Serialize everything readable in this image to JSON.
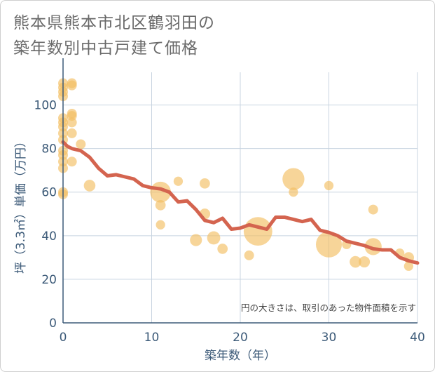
{
  "title_lines": [
    "熊本県熊本市北区鶴羽田の",
    "築年数別中古戸建て価格"
  ],
  "chart_data": {
    "type": "scatter+line",
    "xlabel": "築年数（年）",
    "ylabel": "坪（3.3㎡）単価（万円）",
    "xlim": [
      0,
      40
    ],
    "ylim": [
      0,
      115
    ],
    "xticks": [
      0,
      10,
      20,
      30,
      40
    ],
    "yticks": [
      0,
      20,
      40,
      60,
      80,
      100
    ],
    "note": "円の大きさは、取引のあった物件面積を示す",
    "colors": {
      "bubble": "#f3bf62",
      "bubble_opacity": 0.65,
      "line": "#d4644f",
      "grid": "#c8d4e0",
      "axis": "#3c5a78"
    },
    "scatter": [
      {
        "x": 0,
        "y": 110,
        "s": 1
      },
      {
        "x": 0,
        "y": 108,
        "s": 1
      },
      {
        "x": 0,
        "y": 106,
        "s": 1
      },
      {
        "x": 0,
        "y": 104,
        "s": 1
      },
      {
        "x": 0,
        "y": 94,
        "s": 1
      },
      {
        "x": 0,
        "y": 92,
        "s": 1
      },
      {
        "x": 0,
        "y": 90,
        "s": 1
      },
      {
        "x": 0,
        "y": 87,
        "s": 1
      },
      {
        "x": 0,
        "y": 84,
        "s": 1
      },
      {
        "x": 0,
        "y": 79,
        "s": 1
      },
      {
        "x": 0,
        "y": 77,
        "s": 1
      },
      {
        "x": 0,
        "y": 74,
        "s": 1
      },
      {
        "x": 0,
        "y": 71,
        "s": 1
      },
      {
        "x": 0,
        "y": 60,
        "s": 1
      },
      {
        "x": 0,
        "y": 59,
        "s": 1
      },
      {
        "x": 1,
        "y": 110,
        "s": 1
      },
      {
        "x": 1,
        "y": 109,
        "s": 1
      },
      {
        "x": 1,
        "y": 96,
        "s": 1
      },
      {
        "x": 1,
        "y": 95,
        "s": 1
      },
      {
        "x": 1,
        "y": 92,
        "s": 1
      },
      {
        "x": 1,
        "y": 87,
        "s": 1
      },
      {
        "x": 1,
        "y": 74,
        "s": 1
      },
      {
        "x": 2,
        "y": 82,
        "s": 1
      },
      {
        "x": 3,
        "y": 63,
        "s": 1.4
      },
      {
        "x": 11,
        "y": 60,
        "s": 4.5
      },
      {
        "x": 11,
        "y": 54,
        "s": 1.1
      },
      {
        "x": 11,
        "y": 45,
        "s": 0.9
      },
      {
        "x": 13,
        "y": 65,
        "s": 0.9
      },
      {
        "x": 16,
        "y": 64,
        "s": 1.1
      },
      {
        "x": 16,
        "y": 50,
        "s": 1.2
      },
      {
        "x": 15,
        "y": 38,
        "s": 1.5
      },
      {
        "x": 17,
        "y": 39,
        "s": 1.8
      },
      {
        "x": 18,
        "y": 34,
        "s": 1.1
      },
      {
        "x": 21,
        "y": 31,
        "s": 1.0
      },
      {
        "x": 22,
        "y": 42,
        "s": 8.5
      },
      {
        "x": 26,
        "y": 66,
        "s": 5.0
      },
      {
        "x": 26,
        "y": 60,
        "s": 0.9
      },
      {
        "x": 30,
        "y": 63,
        "s": 0.9
      },
      {
        "x": 30,
        "y": 36,
        "s": 7.0
      },
      {
        "x": 32,
        "y": 36,
        "s": 0.9
      },
      {
        "x": 33,
        "y": 28,
        "s": 1.4
      },
      {
        "x": 34,
        "y": 28,
        "s": 1.3
      },
      {
        "x": 35,
        "y": 52,
        "s": 1.0
      },
      {
        "x": 35,
        "y": 35,
        "s": 3.0
      },
      {
        "x": 38,
        "y": 32,
        "s": 0.9
      },
      {
        "x": 39,
        "y": 30,
        "s": 1.2
      },
      {
        "x": 39,
        "y": 26,
        "s": 0.9
      }
    ],
    "line": {
      "x": [
        0,
        0.5,
        1,
        2,
        3,
        4,
        5,
        6,
        7,
        8,
        9,
        10,
        11,
        12,
        13,
        14,
        15,
        16,
        17,
        18,
        19,
        20,
        21,
        22,
        23,
        24,
        25,
        26,
        27,
        28,
        29,
        30,
        31,
        32,
        33,
        34,
        35,
        36,
        37,
        38,
        39,
        40
      ],
      "y": [
        83,
        81,
        80,
        79,
        76,
        71,
        67.5,
        68,
        67,
        66,
        63,
        62,
        61.5,
        60,
        55.5,
        56,
        52,
        47,
        46,
        48,
        43,
        43.5,
        45,
        44,
        43,
        48.5,
        48.5,
        47.5,
        46.5,
        47.5,
        42.5,
        41.5,
        40,
        37.5,
        36.5,
        35.5,
        34,
        33.5,
        33.5,
        30,
        28.5,
        27.5
      ]
    }
  }
}
